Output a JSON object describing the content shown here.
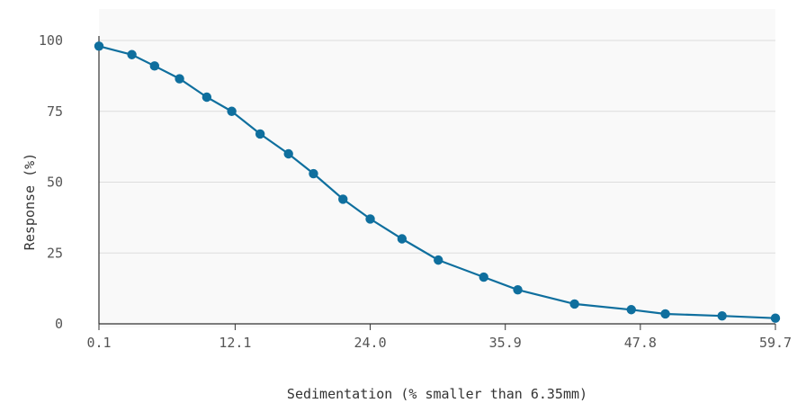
{
  "chart_data": {
    "type": "line",
    "title": "",
    "xlabel": "Sedimentation (% smaller than 6.35mm)",
    "ylabel": "Response (%)",
    "xlim": [
      0.1,
      59.7
    ],
    "ylim": [
      0,
      100
    ],
    "x_ticks": [
      "0.1",
      "12.1",
      "24.0",
      "35.9",
      "47.8",
      "59.7"
    ],
    "x_tick_values": [
      0.1,
      12.1,
      24.0,
      35.9,
      47.8,
      59.7
    ],
    "y_ticks": [
      "0",
      "25",
      "50",
      "75",
      "100"
    ],
    "y_tick_values": [
      0,
      25,
      50,
      75,
      100
    ],
    "grid": "horizontal",
    "legend": "none",
    "colors": {
      "series": "#0f6f9e",
      "grid": "#dddddd",
      "axis": "#333333",
      "plot_background": "#f9f9f9"
    },
    "series": [
      {
        "x": [
          0.1,
          3.0,
          5.0,
          7.2,
          9.6,
          11.8,
          14.3,
          16.8,
          19.0,
          21.6,
          24.0,
          26.8,
          30.0,
          34.0,
          37.0,
          42.0,
          47.0,
          50.0,
          55.0,
          59.7
        ],
        "y": [
          98,
          95,
          91,
          86.5,
          80,
          75,
          67,
          60,
          53,
          44,
          37,
          30,
          22.5,
          16.5,
          12,
          7,
          5,
          3.5,
          2.8,
          2
        ]
      }
    ]
  }
}
